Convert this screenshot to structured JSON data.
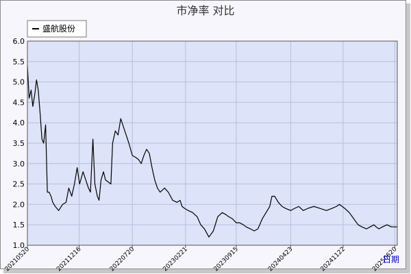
{
  "chart_data": {
    "type": "line",
    "title": "市净率  对比",
    "xlabel": "日期",
    "ylabel": "",
    "ylim": [
      1.0,
      6.0
    ],
    "yticks": [
      "1.0",
      "1.5",
      "2.0",
      "2.5",
      "3.0",
      "3.5",
      "4.0",
      "4.5",
      "5.0",
      "5.5",
      "6.0"
    ],
    "x_ticks": [
      "20210520",
      "20211216",
      "20220720",
      "20230221",
      "20230915",
      "20240423",
      "20241122",
      "20250620"
    ],
    "grid": true,
    "legend_position": "top-left",
    "colors": {
      "background": "#f6f6fc",
      "plot_area": "#dde3f8",
      "grid": "#b4bfe0",
      "line": "#000000",
      "axis_title": "#0000cc"
    },
    "series": [
      {
        "name": "盛航股份",
        "x": [
          "2021-05-20",
          "2021-05-27",
          "2021-06-04",
          "2021-06-11",
          "2021-06-19",
          "2021-06-26",
          "2021-07-03",
          "2021-07-11",
          "2021-07-18",
          "2021-07-25",
          "2021-08-02",
          "2021-08-09",
          "2021-08-16",
          "2021-08-24",
          "2021-08-31",
          "2021-09-10",
          "2021-09-24",
          "2021-10-10",
          "2021-10-24",
          "2021-11-04",
          "2021-11-16",
          "2021-11-27",
          "2021-12-08",
          "2021-12-18",
          "2022-01-01",
          "2022-01-12",
          "2022-01-23",
          "2022-01-31",
          "2022-02-10",
          "2022-02-18",
          "2022-02-28",
          "2022-03-07",
          "2022-03-15",
          "2022-03-25",
          "2022-04-02",
          "2022-04-13",
          "2022-04-24",
          "2022-05-01",
          "2022-05-12",
          "2022-05-23",
          "2022-06-03",
          "2022-06-14",
          "2022-06-25",
          "2022-07-06",
          "2022-07-20",
          "2022-08-03",
          "2022-08-14",
          "2022-08-25",
          "2022-09-05",
          "2022-09-16",
          "2022-09-27",
          "2022-10-08",
          "2022-10-19",
          "2022-10-30",
          "2022-11-10",
          "2022-11-28",
          "2022-12-13",
          "2022-12-31",
          "2023-01-18",
          "2023-01-30",
          "2023-02-07",
          "2023-02-18",
          "2023-03-04",
          "2023-03-22",
          "2023-04-09",
          "2023-04-24",
          "2023-05-09",
          "2023-05-27",
          "2023-06-14",
          "2023-07-02",
          "2023-07-20",
          "2023-08-04",
          "2023-08-15",
          "2023-08-30",
          "2023-09-15",
          "2023-09-29",
          "2023-10-14",
          "2023-10-25",
          "2023-11-12",
          "2023-11-27",
          "2023-12-12",
          "2023-12-30",
          "2024-01-14",
          "2024-01-29",
          "2024-02-07",
          "2024-02-18",
          "2024-03-04",
          "2024-03-19",
          "2024-04-03",
          "2024-04-23",
          "2024-05-08",
          "2024-05-26",
          "2024-06-13",
          "2024-07-01",
          "2024-07-26",
          "2024-08-21",
          "2024-09-15",
          "2024-10-07",
          "2024-10-26",
          "2024-11-07",
          "2024-11-18",
          "2024-11-29",
          "2024-12-17",
          "2025-01-04",
          "2025-01-22",
          "2025-02-06",
          "2025-02-25",
          "2025-03-12",
          "2025-03-27",
          "2025-04-05",
          "2025-04-16",
          "2025-05-01",
          "2025-05-19",
          "2025-06-06",
          "2025-06-20",
          "2025-06-30"
        ],
        "y": [
          5.4,
          4.6,
          4.8,
          4.4,
          4.7,
          5.05,
          4.8,
          4.2,
          3.6,
          3.5,
          3.95,
          2.3,
          2.3,
          2.2,
          2.05,
          1.95,
          1.85,
          2.0,
          2.05,
          2.4,
          2.2,
          2.5,
          2.9,
          2.5,
          2.8,
          2.6,
          2.4,
          2.3,
          3.6,
          2.5,
          2.2,
          2.1,
          2.6,
          2.8,
          2.6,
          2.55,
          2.5,
          3.5,
          3.8,
          3.7,
          4.1,
          3.9,
          3.7,
          3.5,
          3.2,
          3.15,
          3.1,
          3.0,
          3.2,
          3.35,
          3.25,
          2.9,
          2.6,
          2.4,
          2.3,
          2.4,
          2.3,
          2.1,
          2.05,
          2.1,
          1.95,
          1.9,
          1.85,
          1.8,
          1.7,
          1.5,
          1.4,
          1.2,
          1.35,
          1.7,
          1.8,
          1.75,
          1.7,
          1.65,
          1.55,
          1.55,
          1.5,
          1.45,
          1.4,
          1.35,
          1.4,
          1.65,
          1.8,
          1.95,
          2.2,
          2.2,
          2.05,
          1.95,
          1.9,
          1.85,
          1.9,
          1.95,
          1.85,
          1.9,
          1.95,
          1.9,
          1.85,
          1.9,
          1.95,
          2.0,
          1.95,
          1.9,
          1.8,
          1.65,
          1.5,
          1.45,
          1.4,
          1.45,
          1.5,
          1.45,
          1.4,
          1.45,
          1.5,
          1.45,
          1.45,
          1.45
        ]
      }
    ]
  }
}
